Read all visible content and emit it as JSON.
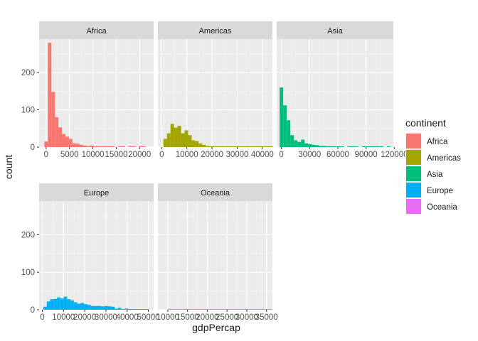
{
  "chart_data": {
    "type": "bar",
    "title": "",
    "xlabel": "gdpPercap",
    "ylabel": "count",
    "ylim": [
      0,
      290
    ],
    "y_ticks": [
      0,
      100,
      200
    ],
    "grid": true,
    "legend": {
      "title": "continent",
      "position": "right",
      "entries": [
        {
          "name": "Africa",
          "color": "#F8766D"
        },
        {
          "name": "Americas",
          "color": "#A3A500"
        },
        {
          "name": "Asia",
          "color": "#00BF7D"
        },
        {
          "name": "Europe",
          "color": "#00B0F6"
        },
        {
          "name": "Oceania",
          "color": "#E76BF3"
        }
      ]
    },
    "facets": [
      {
        "name": "Africa",
        "color": "#F8766D",
        "xlim": [
          -1500,
          23000
        ],
        "x_ticks": [
          0,
          5000,
          10000,
          15000,
          20000
        ],
        "x_tick_labels": [
          "0",
          "5000",
          "10000",
          "15000",
          "20000"
        ],
        "bin_width": 750,
        "bin_start": -375,
        "counts": [
          15,
          280,
          148,
          80,
          53,
          35,
          28,
          22,
          10,
          9,
          6,
          4,
          3,
          4,
          2,
          2,
          1,
          2,
          1,
          1,
          0,
          1,
          1,
          0,
          1,
          1,
          0,
          1,
          1,
          0,
          0
        ]
      },
      {
        "name": "Americas",
        "color": "#A3A500",
        "xlim": [
          -1500,
          44000
        ],
        "x_ticks": [
          0,
          10000,
          20000,
          30000,
          40000
        ],
        "x_tick_labels": [
          "0",
          "10000",
          "20000",
          "30000",
          "40000"
        ],
        "bin_width": 1400,
        "bin_start": 700,
        "counts": [
          22,
          37,
          62,
          52,
          57,
          37,
          45,
          32,
          18,
          16,
          10,
          6,
          3,
          2,
          2,
          1,
          1,
          1,
          1,
          1,
          1,
          1,
          1,
          1,
          1,
          1,
          1,
          1,
          1,
          1,
          1
        ]
      },
      {
        "name": "Asia",
        "color": "#00BF7D",
        "xlim": [
          -5000,
          119000
        ],
        "x_ticks": [
          0,
          30000,
          60000,
          90000,
          120000
        ],
        "x_tick_labels": [
          "0",
          "30000",
          "60000",
          "90000",
          "120000"
        ],
        "bin_width": 3800,
        "bin_start": -1900,
        "counts": [
          160,
          112,
          72,
          32,
          18,
          14,
          20,
          10,
          8,
          6,
          5,
          3,
          3,
          2,
          2,
          1,
          1,
          1,
          0,
          1,
          1,
          1,
          0,
          1,
          1,
          1,
          1,
          1,
          1,
          0,
          1
        ]
      },
      {
        "name": "Europe",
        "color": "#00B0F6",
        "xlim": [
          -1500,
          52500
        ],
        "x_ticks": [
          0,
          10000,
          20000,
          30000,
          40000,
          50000
        ],
        "x_tick_labels": [
          "0",
          "10000",
          "20000",
          "30000",
          "40000",
          "50000"
        ],
        "bin_width": 1600,
        "bin_start": 500,
        "counts": [
          8,
          22,
          28,
          29,
          33,
          30,
          35,
          28,
          25,
          20,
          16,
          18,
          15,
          13,
          10,
          10,
          10,
          9,
          10,
          9,
          8,
          3,
          5,
          2,
          3,
          1,
          1,
          1,
          1,
          1,
          1
        ]
      },
      {
        "name": "Oceania",
        "color": "#E76BF3",
        "xlim": [
          7500,
          36500
        ],
        "x_ticks": [
          10000,
          15000,
          20000,
          25000,
          30000,
          35000
        ],
        "x_tick_labels": [
          "10000",
          "15000",
          "20000",
          "25000",
          "30000",
          "35000"
        ],
        "bin_width": 850,
        "bin_start": 10000,
        "counts": [
          2,
          1,
          2,
          2,
          1,
          2,
          2,
          2,
          2,
          1,
          2,
          2,
          1,
          1,
          2,
          2,
          1,
          2,
          1,
          1,
          1,
          2,
          1,
          1,
          1,
          1,
          1,
          1,
          1,
          1,
          1
        ]
      }
    ]
  }
}
